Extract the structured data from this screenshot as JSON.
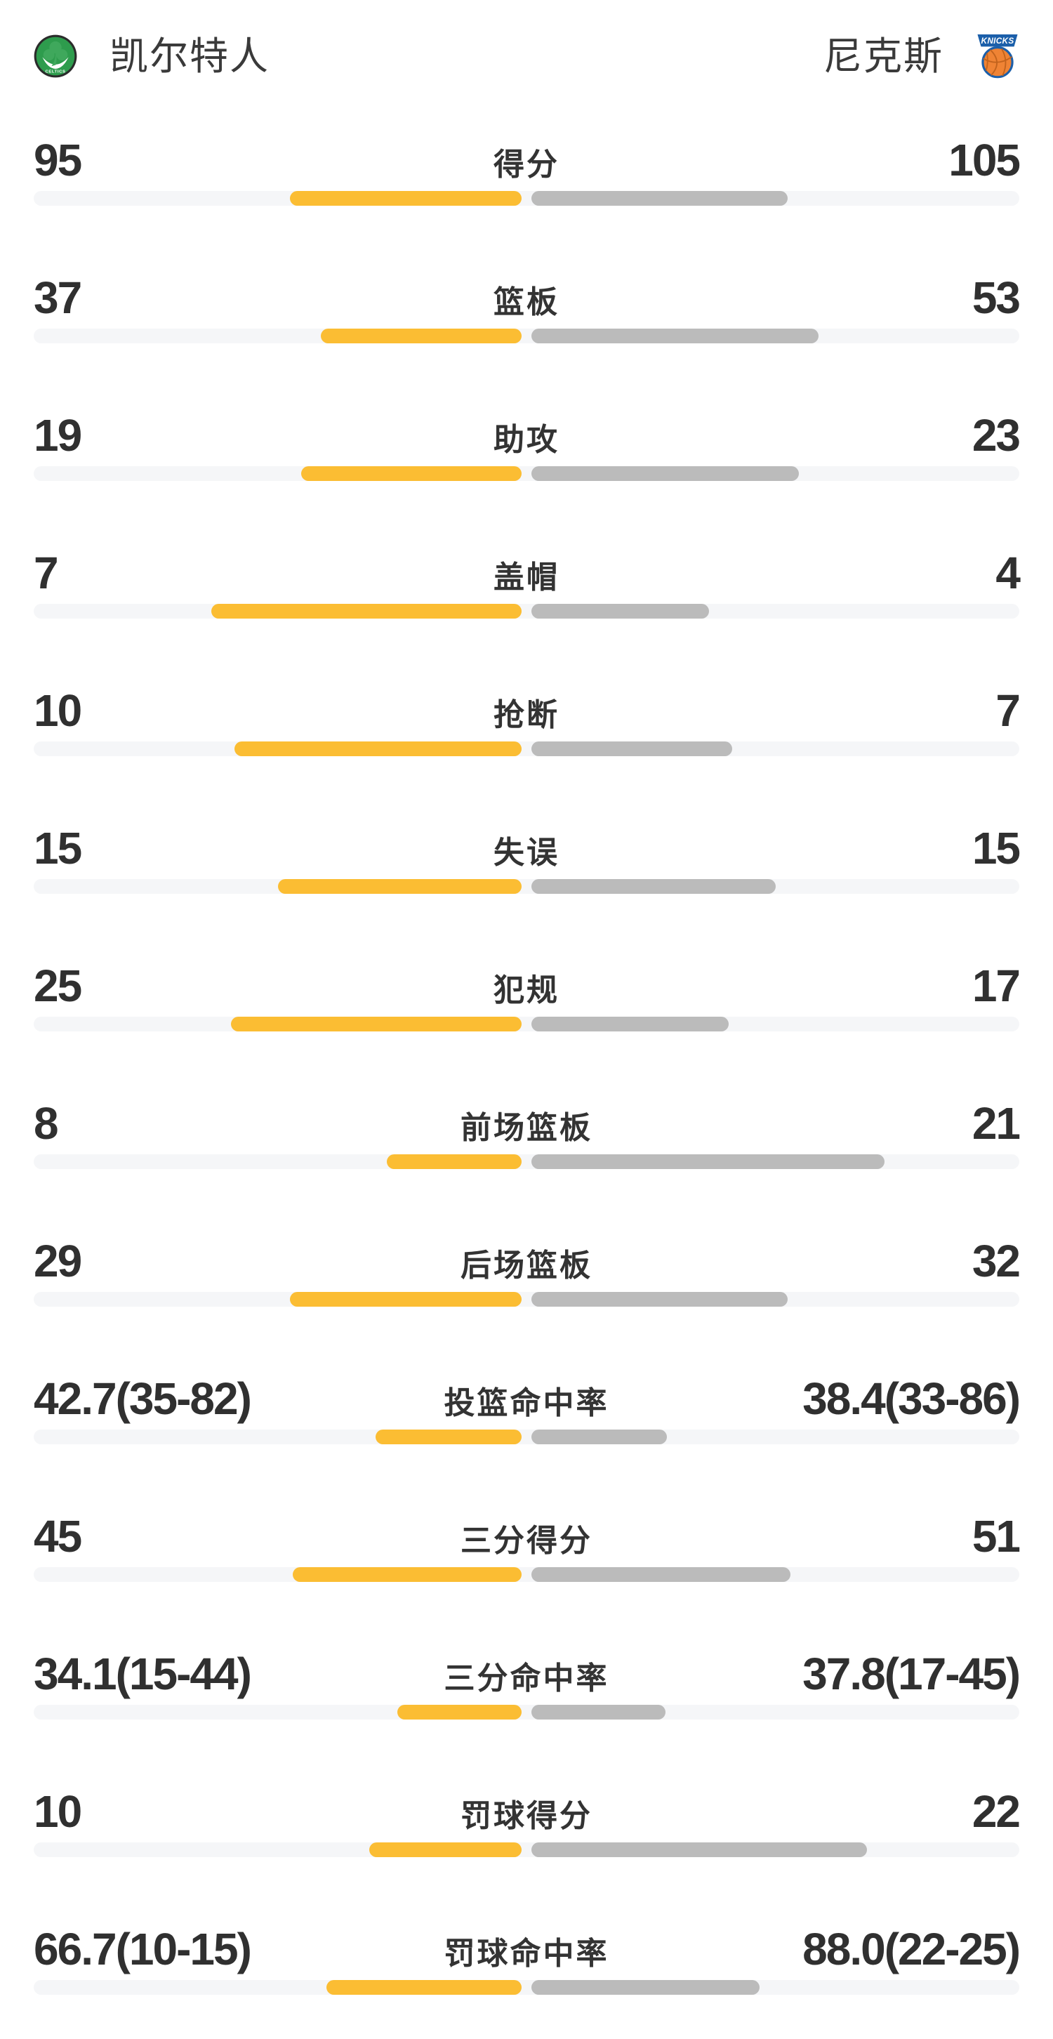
{
  "header": {
    "left_team": {
      "name": "凯尔特人",
      "logo_wordmark": "CELTICS",
      "logo_colors": {
        "ring": "#2b2b2b",
        "disc": "#2e9c4d",
        "shamrock": "#3fa85c",
        "detail": "#ffffff"
      }
    },
    "right_team": {
      "name": "尼克斯",
      "logo_wordmark": "KNICKS",
      "logo_colors": {
        "banner": "#1b5faa",
        "ball": "#ef8334",
        "seams": "#c2631d",
        "text": "#ffffff"
      }
    }
  },
  "chart_data": {
    "type": "bar",
    "subtype": "head-to-head-horizontal-comparison",
    "teams": [
      "凯尔特人",
      "尼克斯"
    ],
    "legend_position": "none",
    "grid": false,
    "colors": {
      "left_bar": "#fbbd33",
      "right_bar": "#bbbbbb",
      "track": "#f5f6f8",
      "value_text": "#303030",
      "label_text": "#333333"
    },
    "rows": [
      {
        "label": "得分",
        "left": "95",
        "right": "105",
        "left_value": 95,
        "right_value": 105,
        "scale": "share"
      },
      {
        "label": "篮板",
        "left": "37",
        "right": "53",
        "left_value": 37,
        "right_value": 53,
        "scale": "share"
      },
      {
        "label": "助攻",
        "left": "19",
        "right": "23",
        "left_value": 19,
        "right_value": 23,
        "scale": "share"
      },
      {
        "label": "盖帽",
        "left": "7",
        "right": "4",
        "left_value": 7,
        "right_value": 4,
        "scale": "share"
      },
      {
        "label": "抢断",
        "left": "10",
        "right": "7",
        "left_value": 10,
        "right_value": 7,
        "scale": "share"
      },
      {
        "label": "失误",
        "left": "15",
        "right": "15",
        "left_value": 15,
        "right_value": 15,
        "scale": "share"
      },
      {
        "label": "犯规",
        "left": "25",
        "right": "17",
        "left_value": 25,
        "right_value": 17,
        "scale": "share"
      },
      {
        "label": "前场篮板",
        "left": "8",
        "right": "21",
        "left_value": 8,
        "right_value": 21,
        "scale": "share"
      },
      {
        "label": "后场篮板",
        "left": "29",
        "right": "32",
        "left_value": 29,
        "right_value": 32,
        "scale": "share"
      },
      {
        "label": "投篮命中率",
        "left": "42.7(35-82)",
        "right": "38.4(33-86)",
        "left_value": 42.7,
        "right_value": 38.4,
        "scale": "vs100"
      },
      {
        "label": "三分得分",
        "left": "45",
        "right": "51",
        "left_value": 45,
        "right_value": 51,
        "scale": "share"
      },
      {
        "label": "三分命中率",
        "left": "34.1(15-44)",
        "right": "37.8(17-45)",
        "left_value": 34.1,
        "right_value": 37.8,
        "scale": "vs100"
      },
      {
        "label": "罚球得分",
        "left": "10",
        "right": "22",
        "left_value": 10,
        "right_value": 22,
        "scale": "share"
      },
      {
        "label": "罚球命中率",
        "left": "66.7(10-15)",
        "right": "88.0(22-25)",
        "left_value": 66.7,
        "right_value": 88.0,
        "scale": "vs100"
      }
    ]
  }
}
